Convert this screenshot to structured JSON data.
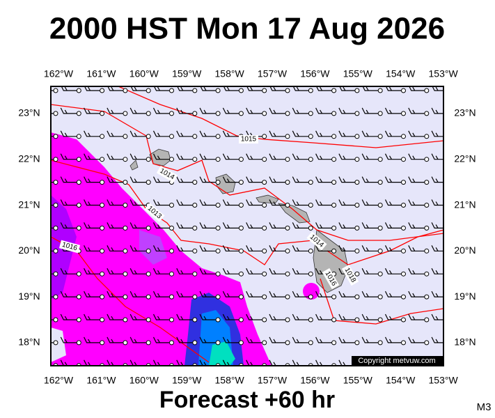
{
  "title": "2000 HST Mon 17 Aug 2026",
  "longitude_labels": [
    "162°W",
    "161°W",
    "160°W",
    "159°W",
    "158°W",
    "157°W",
    "156°W",
    "155°W",
    "154°W",
    "153°W"
  ],
  "latitude_labels": [
    "23°N",
    "22°N",
    "21°N",
    "20°N",
    "19°N",
    "18°N"
  ],
  "isobar_labels": [
    "1015",
    "1014",
    "1013",
    "1016",
    "1014",
    "1016",
    "1018"
  ],
  "copyright": "Copyright metvuw.com",
  "footer": "Forecast +60 hr",
  "code": "M3"
}
